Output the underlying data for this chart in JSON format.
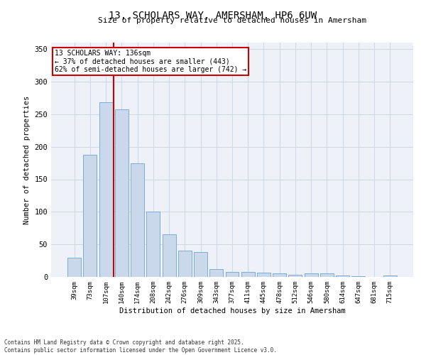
{
  "title_line1": "13, SCHOLARS WAY, AMERSHAM, HP6 6UW",
  "title_line2": "Size of property relative to detached houses in Amersham",
  "xlabel": "Distribution of detached houses by size in Amersham",
  "ylabel": "Number of detached properties",
  "categories": [
    "39sqm",
    "73sqm",
    "107sqm",
    "140sqm",
    "174sqm",
    "208sqm",
    "242sqm",
    "276sqm",
    "309sqm",
    "343sqm",
    "377sqm",
    "411sqm",
    "445sqm",
    "478sqm",
    "512sqm",
    "546sqm",
    "580sqm",
    "614sqm",
    "647sqm",
    "681sqm",
    "715sqm"
  ],
  "values": [
    29,
    188,
    268,
    257,
    175,
    100,
    65,
    40,
    38,
    12,
    8,
    8,
    7,
    5,
    3,
    5,
    5,
    2,
    1,
    0,
    2
  ],
  "bar_color": "#c9d9eb",
  "bar_edge_color": "#7aaed6",
  "vline_index": 3,
  "vline_color": "#cc0000",
  "annotation_text": "13 SCHOLARS WAY: 136sqm\n← 37% of detached houses are smaller (443)\n62% of semi-detached houses are larger (742) →",
  "annotation_box_color": "#ffffff",
  "annotation_box_edge": "#cc0000",
  "ylim": [
    0,
    360
  ],
  "yticks": [
    0,
    50,
    100,
    150,
    200,
    250,
    300,
    350
  ],
  "grid_color": "#d0d8e8",
  "bg_color": "#eef2f8",
  "footer_line1": "Contains HM Land Registry data © Crown copyright and database right 2025.",
  "footer_line2": "Contains public sector information licensed under the Open Government Licence v3.0."
}
